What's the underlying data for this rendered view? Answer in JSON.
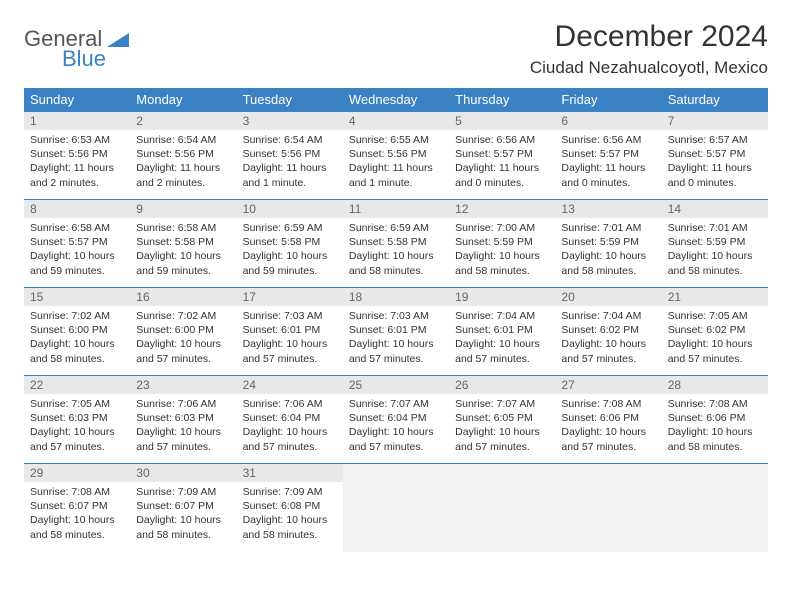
{
  "logo": {
    "text1": "General",
    "text2": "Blue"
  },
  "title": "December 2024",
  "location": "Ciudad Nezahualcoyotl, Mexico",
  "colors": {
    "header_bg": "#3b82c4",
    "header_text": "#ffffff",
    "daynum_bg": "#e8e8e8",
    "daynum_text": "#666666",
    "body_text": "#333333",
    "border": "#3b82c4",
    "empty_bg": "#f2f2f2",
    "logo_gray": "#555555",
    "logo_blue": "#3b82c4"
  },
  "font": {
    "family": "Arial",
    "title_size": 30,
    "location_size": 17,
    "header_size": 13,
    "daynum_size": 12,
    "info_size": 10.5
  },
  "weekdays": [
    "Sunday",
    "Monday",
    "Tuesday",
    "Wednesday",
    "Thursday",
    "Friday",
    "Saturday"
  ],
  "weeks": [
    [
      {
        "n": "1",
        "sunrise": "Sunrise: 6:53 AM",
        "sunset": "Sunset: 5:56 PM",
        "daylight": "Daylight: 11 hours and 2 minutes."
      },
      {
        "n": "2",
        "sunrise": "Sunrise: 6:54 AM",
        "sunset": "Sunset: 5:56 PM",
        "daylight": "Daylight: 11 hours and 2 minutes."
      },
      {
        "n": "3",
        "sunrise": "Sunrise: 6:54 AM",
        "sunset": "Sunset: 5:56 PM",
        "daylight": "Daylight: 11 hours and 1 minute."
      },
      {
        "n": "4",
        "sunrise": "Sunrise: 6:55 AM",
        "sunset": "Sunset: 5:56 PM",
        "daylight": "Daylight: 11 hours and 1 minute."
      },
      {
        "n": "5",
        "sunrise": "Sunrise: 6:56 AM",
        "sunset": "Sunset: 5:57 PM",
        "daylight": "Daylight: 11 hours and 0 minutes."
      },
      {
        "n": "6",
        "sunrise": "Sunrise: 6:56 AM",
        "sunset": "Sunset: 5:57 PM",
        "daylight": "Daylight: 11 hours and 0 minutes."
      },
      {
        "n": "7",
        "sunrise": "Sunrise: 6:57 AM",
        "sunset": "Sunset: 5:57 PM",
        "daylight": "Daylight: 11 hours and 0 minutes."
      }
    ],
    [
      {
        "n": "8",
        "sunrise": "Sunrise: 6:58 AM",
        "sunset": "Sunset: 5:57 PM",
        "daylight": "Daylight: 10 hours and 59 minutes."
      },
      {
        "n": "9",
        "sunrise": "Sunrise: 6:58 AM",
        "sunset": "Sunset: 5:58 PM",
        "daylight": "Daylight: 10 hours and 59 minutes."
      },
      {
        "n": "10",
        "sunrise": "Sunrise: 6:59 AM",
        "sunset": "Sunset: 5:58 PM",
        "daylight": "Daylight: 10 hours and 59 minutes."
      },
      {
        "n": "11",
        "sunrise": "Sunrise: 6:59 AM",
        "sunset": "Sunset: 5:58 PM",
        "daylight": "Daylight: 10 hours and 58 minutes."
      },
      {
        "n": "12",
        "sunrise": "Sunrise: 7:00 AM",
        "sunset": "Sunset: 5:59 PM",
        "daylight": "Daylight: 10 hours and 58 minutes."
      },
      {
        "n": "13",
        "sunrise": "Sunrise: 7:01 AM",
        "sunset": "Sunset: 5:59 PM",
        "daylight": "Daylight: 10 hours and 58 minutes."
      },
      {
        "n": "14",
        "sunrise": "Sunrise: 7:01 AM",
        "sunset": "Sunset: 5:59 PM",
        "daylight": "Daylight: 10 hours and 58 minutes."
      }
    ],
    [
      {
        "n": "15",
        "sunrise": "Sunrise: 7:02 AM",
        "sunset": "Sunset: 6:00 PM",
        "daylight": "Daylight: 10 hours and 58 minutes."
      },
      {
        "n": "16",
        "sunrise": "Sunrise: 7:02 AM",
        "sunset": "Sunset: 6:00 PM",
        "daylight": "Daylight: 10 hours and 57 minutes."
      },
      {
        "n": "17",
        "sunrise": "Sunrise: 7:03 AM",
        "sunset": "Sunset: 6:01 PM",
        "daylight": "Daylight: 10 hours and 57 minutes."
      },
      {
        "n": "18",
        "sunrise": "Sunrise: 7:03 AM",
        "sunset": "Sunset: 6:01 PM",
        "daylight": "Daylight: 10 hours and 57 minutes."
      },
      {
        "n": "19",
        "sunrise": "Sunrise: 7:04 AM",
        "sunset": "Sunset: 6:01 PM",
        "daylight": "Daylight: 10 hours and 57 minutes."
      },
      {
        "n": "20",
        "sunrise": "Sunrise: 7:04 AM",
        "sunset": "Sunset: 6:02 PM",
        "daylight": "Daylight: 10 hours and 57 minutes."
      },
      {
        "n": "21",
        "sunrise": "Sunrise: 7:05 AM",
        "sunset": "Sunset: 6:02 PM",
        "daylight": "Daylight: 10 hours and 57 minutes."
      }
    ],
    [
      {
        "n": "22",
        "sunrise": "Sunrise: 7:05 AM",
        "sunset": "Sunset: 6:03 PM",
        "daylight": "Daylight: 10 hours and 57 minutes."
      },
      {
        "n": "23",
        "sunrise": "Sunrise: 7:06 AM",
        "sunset": "Sunset: 6:03 PM",
        "daylight": "Daylight: 10 hours and 57 minutes."
      },
      {
        "n": "24",
        "sunrise": "Sunrise: 7:06 AM",
        "sunset": "Sunset: 6:04 PM",
        "daylight": "Daylight: 10 hours and 57 minutes."
      },
      {
        "n": "25",
        "sunrise": "Sunrise: 7:07 AM",
        "sunset": "Sunset: 6:04 PM",
        "daylight": "Daylight: 10 hours and 57 minutes."
      },
      {
        "n": "26",
        "sunrise": "Sunrise: 7:07 AM",
        "sunset": "Sunset: 6:05 PM",
        "daylight": "Daylight: 10 hours and 57 minutes."
      },
      {
        "n": "27",
        "sunrise": "Sunrise: 7:08 AM",
        "sunset": "Sunset: 6:06 PM",
        "daylight": "Daylight: 10 hours and 57 minutes."
      },
      {
        "n": "28",
        "sunrise": "Sunrise: 7:08 AM",
        "sunset": "Sunset: 6:06 PM",
        "daylight": "Daylight: 10 hours and 58 minutes."
      }
    ],
    [
      {
        "n": "29",
        "sunrise": "Sunrise: 7:08 AM",
        "sunset": "Sunset: 6:07 PM",
        "daylight": "Daylight: 10 hours and 58 minutes."
      },
      {
        "n": "30",
        "sunrise": "Sunrise: 7:09 AM",
        "sunset": "Sunset: 6:07 PM",
        "daylight": "Daylight: 10 hours and 58 minutes."
      },
      {
        "n": "31",
        "sunrise": "Sunrise: 7:09 AM",
        "sunset": "Sunset: 6:08 PM",
        "daylight": "Daylight: 10 hours and 58 minutes."
      },
      null,
      null,
      null,
      null
    ]
  ]
}
